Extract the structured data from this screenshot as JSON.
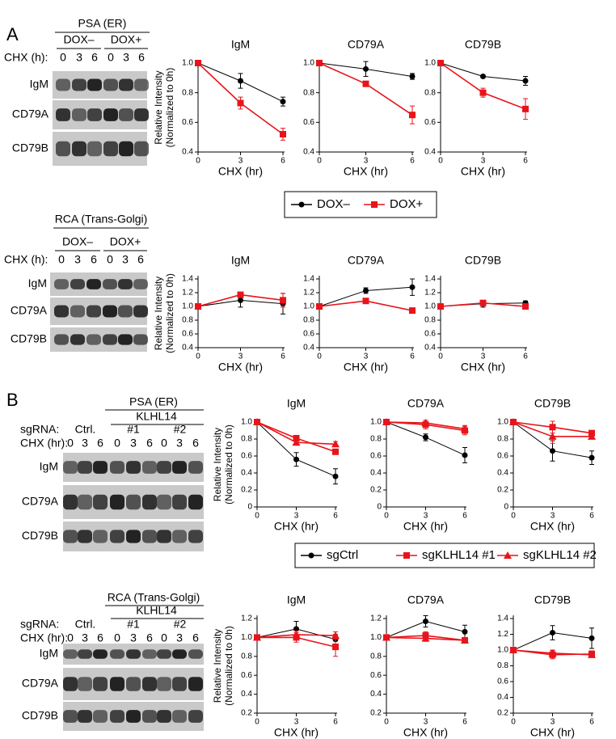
{
  "panels": [
    "A",
    "B"
  ],
  "blots": [
    {
      "title": "PSA (ER)",
      "groups": [
        "DOX–",
        "DOX+"
      ],
      "chx_label": "CHX (h):",
      "lanes": [
        "0",
        "3",
        "6",
        "0",
        "3",
        "6"
      ],
      "rows": [
        "IgM",
        "CD79A",
        "CD79B"
      ]
    },
    {
      "title": "RCA (Trans-Golgi)",
      "groups": [
        "DOX–",
        "DOX+"
      ],
      "chx_label": "CHX (h):",
      "lanes": [
        "0",
        "3",
        "6",
        "0",
        "3",
        "6"
      ],
      "rows": [
        "IgM",
        "CD79A",
        "CD79B"
      ]
    },
    {
      "title": "PSA (ER)",
      "super_group": "KLHL14",
      "group_label": "sgRNA:",
      "groups": [
        "Ctrl.",
        "#1",
        "#2"
      ],
      "chx_label": "CHX (hr):",
      "lanes": [
        "0",
        "3",
        "6",
        "0",
        "3",
        "6",
        "0",
        "3",
        "6"
      ],
      "rows": [
        "IgM",
        "CD79A",
        "CD79B"
      ]
    },
    {
      "title": "RCA (Trans-Golgi)",
      "super_group": "KLHL14",
      "group_label": "sgRNA:",
      "groups": [
        "Ctrl.",
        "#1",
        "#2"
      ],
      "chx_label": "CHX (hr):",
      "lanes": [
        "0",
        "3",
        "6",
        "0",
        "3",
        "6",
        "0",
        "3",
        "6"
      ],
      "rows": [
        "IgM",
        "CD79A",
        "CD79B"
      ]
    }
  ],
  "chart_data": [
    {
      "type": "line",
      "title": "IgM",
      "xlabel": "CHX (hr)",
      "ylabel": [
        "Relative Intensity",
        "(Normalized to 0h)"
      ],
      "x": [
        0,
        3,
        6
      ],
      "xlim": [
        0,
        6
      ],
      "xticks": [
        0,
        3,
        6
      ],
      "ylim": [
        0.4,
        1.0
      ],
      "yticks": [
        0.4,
        0.6,
        0.8,
        {
          "value": 1.0,
          "label": "1.0"
        }
      ],
      "series": [
        {
          "name": "DOX–",
          "color": "#000000",
          "marker": "circle",
          "values": [
            1.0,
            0.88,
            0.74
          ],
          "errors": [
            0,
            0.05,
            0.03
          ]
        },
        {
          "name": "DOX+",
          "color": "#e8141b",
          "marker": "square",
          "values": [
            1.0,
            0.73,
            0.52
          ],
          "errors": [
            0,
            0.04,
            0.04
          ]
        }
      ]
    },
    {
      "type": "line",
      "title": "CD79A",
      "xlabel": "CHX (hr)",
      "x": [
        0,
        3,
        6
      ],
      "xlim": [
        0,
        6
      ],
      "xticks": [
        0,
        3,
        6
      ],
      "ylim": [
        0.4,
        1.0
      ],
      "yticks": [
        0.4,
        0.6,
        0.8,
        {
          "value": 1.0,
          "label": "1.0"
        }
      ],
      "series": [
        {
          "name": "DOX–",
          "color": "#000000",
          "marker": "circle",
          "values": [
            1.0,
            0.96,
            0.91
          ],
          "errors": [
            0,
            0.05,
            0.02
          ]
        },
        {
          "name": "DOX+",
          "color": "#e8141b",
          "marker": "square",
          "values": [
            1.0,
            0.86,
            0.65
          ],
          "errors": [
            0,
            0.01,
            0.06
          ]
        }
      ]
    },
    {
      "type": "line",
      "title": "CD79B",
      "xlabel": "CHX (hr)",
      "x": [
        0,
        3,
        6
      ],
      "xlim": [
        0,
        6
      ],
      "xticks": [
        0,
        3,
        6
      ],
      "ylim": [
        0.4,
        1.0
      ],
      "yticks": [
        0.4,
        0.6,
        0.8,
        {
          "value": 1.0,
          "label": "1.0"
        }
      ],
      "series": [
        {
          "name": "DOX–",
          "color": "#000000",
          "marker": "circle",
          "values": [
            1.0,
            0.91,
            0.88
          ],
          "errors": [
            0,
            0.01,
            0.03
          ]
        },
        {
          "name": "DOX+",
          "color": "#e8141b",
          "marker": "square",
          "values": [
            1.0,
            0.8,
            0.69
          ],
          "errors": [
            0,
            0.03,
            0.07
          ]
        }
      ]
    },
    {
      "type": "line",
      "title": "IgM",
      "xlabel": "CHX (hr)",
      "ylabel": [
        "Relative Intensity",
        "(Normalized to 0h)"
      ],
      "x": [
        0,
        3,
        6
      ],
      "xlim": [
        0,
        6
      ],
      "xticks": [
        0,
        3,
        6
      ],
      "ylim": [
        0.4,
        1.4
      ],
      "yticks": [
        0.4,
        0.6,
        0.8,
        {
          "value": 1.0,
          "label": "1.0"
        },
        1.2,
        1.4
      ],
      "series": [
        {
          "name": "DOX–",
          "color": "#000000",
          "marker": "circle",
          "values": [
            1.0,
            1.09,
            1.04
          ],
          "errors": [
            0,
            0.1,
            0.15
          ]
        },
        {
          "name": "DOX+",
          "color": "#e8141b",
          "marker": "square",
          "values": [
            1.0,
            1.17,
            1.09
          ],
          "errors": [
            0,
            0.01,
            0.1
          ]
        }
      ]
    },
    {
      "type": "line",
      "title": "CD79A",
      "xlabel": "CHX (hr)",
      "x": [
        0,
        3,
        6
      ],
      "xlim": [
        0,
        6
      ],
      "xticks": [
        0,
        3,
        6
      ],
      "ylim": [
        0.4,
        1.4
      ],
      "yticks": [
        0.4,
        0.6,
        0.8,
        {
          "value": 1.0,
          "label": "1.0"
        },
        1.2,
        1.4
      ],
      "series": [
        {
          "name": "DOX–",
          "color": "#000000",
          "marker": "circle",
          "values": [
            1.0,
            1.23,
            1.28
          ],
          "errors": [
            0,
            0.04,
            0.12
          ]
        },
        {
          "name": "DOX+",
          "color": "#e8141b",
          "marker": "square",
          "values": [
            1.0,
            1.08,
            0.94
          ],
          "errors": [
            0,
            0.01,
            0.01
          ]
        }
      ]
    },
    {
      "type": "line",
      "title": "CD79B",
      "xlabel": "CHX (hr)",
      "x": [
        0,
        3,
        6
      ],
      "xlim": [
        0,
        6
      ],
      "xticks": [
        0,
        3,
        6
      ],
      "ylim": [
        0.4,
        1.4
      ],
      "yticks": [
        0.4,
        0.6,
        0.8,
        {
          "value": 1.0,
          "label": "1.0"
        },
        1.2,
        1.4
      ],
      "series": [
        {
          "name": "DOX–",
          "color": "#000000",
          "marker": "circle",
          "values": [
            1.0,
            1.04,
            1.05
          ],
          "errors": [
            0,
            0.05,
            0.03
          ]
        },
        {
          "name": "DOX+",
          "color": "#e8141b",
          "marker": "square",
          "values": [
            1.0,
            1.05,
            1.0
          ],
          "errors": [
            0,
            0.02,
            0.03
          ]
        }
      ]
    },
    {
      "type": "line",
      "title": "IgM",
      "xlabel": "CHX (hr)",
      "ylabel": [
        "Relative Intensity",
        "(Normalized to 0h)"
      ],
      "x": [
        0,
        3,
        6
      ],
      "xlim": [
        0,
        6
      ],
      "xticks": [
        0,
        3,
        6
      ],
      "ylim": [
        0,
        1.0
      ],
      "yticks": [
        0,
        0.2,
        0.4,
        0.6,
        0.8,
        {
          "value": 1.0,
          "label": "1.0"
        }
      ],
      "series": [
        {
          "name": "sgCtrl",
          "color": "#000000",
          "marker": "circle",
          "values": [
            1.0,
            0.56,
            0.36
          ],
          "errors": [
            0,
            0.08,
            0.09
          ]
        },
        {
          "name": "sgKLHL14 #1",
          "color": "#e8141b",
          "marker": "square",
          "values": [
            1.0,
            0.81,
            0.65
          ],
          "errors": [
            0,
            0.02,
            0.02
          ]
        },
        {
          "name": "sgKLHL14 #2",
          "color": "#e8141b",
          "marker": "triangle",
          "values": [
            1.0,
            0.76,
            0.74
          ],
          "errors": [
            0,
            0.03,
            0.03
          ]
        }
      ]
    },
    {
      "type": "line",
      "title": "CD79A",
      "xlabel": "CHX (hr)",
      "x": [
        0,
        3,
        6
      ],
      "xlim": [
        0,
        6
      ],
      "xticks": [
        0,
        3,
        6
      ],
      "ylim": [
        0,
        1.0
      ],
      "yticks": [
        0,
        0.2,
        0.4,
        0.6,
        0.8,
        {
          "value": 1.0,
          "label": "1.0"
        }
      ],
      "series": [
        {
          "name": "sgCtrl",
          "color": "#000000",
          "marker": "circle",
          "values": [
            1.0,
            0.82,
            0.61
          ],
          "errors": [
            0,
            0.04,
            0.09
          ]
        },
        {
          "name": "sgKLHL14 #1",
          "color": "#e8141b",
          "marker": "square",
          "values": [
            1.0,
            0.97,
            0.9
          ],
          "errors": [
            0,
            0.05,
            0.05
          ]
        },
        {
          "name": "sgKLHL14 #2",
          "color": "#e8141b",
          "marker": "triangle",
          "values": [
            1.0,
            0.99,
            0.92
          ],
          "errors": [
            0,
            0.03,
            0.04
          ]
        }
      ]
    },
    {
      "type": "line",
      "title": "CD79B",
      "xlabel": "CHX (hr)",
      "x": [
        0,
        3,
        6
      ],
      "xlim": [
        0,
        6
      ],
      "xticks": [
        0,
        3,
        6
      ],
      "ylim": [
        0,
        1.0
      ],
      "yticks": [
        0,
        0.2,
        0.4,
        0.6,
        0.8,
        {
          "value": 1.0,
          "label": "1.0"
        }
      ],
      "series": [
        {
          "name": "sgCtrl",
          "color": "#000000",
          "marker": "circle",
          "values": [
            1.0,
            0.66,
            0.58
          ],
          "errors": [
            0,
            0.12,
            0.08
          ]
        },
        {
          "name": "sgKLHL14 #1",
          "color": "#e8141b",
          "marker": "square",
          "values": [
            1.0,
            0.94,
            0.87
          ],
          "errors": [
            0,
            0.07,
            0.01
          ]
        },
        {
          "name": "sgKLHL14 #2",
          "color": "#e8141b",
          "marker": "triangle",
          "values": [
            1.0,
            0.83,
            0.83
          ],
          "errors": [
            0,
            0.08,
            0.02
          ]
        }
      ]
    },
    {
      "type": "line",
      "title": "IgM",
      "xlabel": "CHX (hr)",
      "ylabel": [
        "Relative Intensity",
        "(Normalized to 0h)"
      ],
      "x": [
        0,
        3,
        6
      ],
      "xlim": [
        0,
        6
      ],
      "xticks": [
        0,
        3,
        6
      ],
      "ylim": [
        0.2,
        1.2
      ],
      "yticks": [
        0.2,
        0.4,
        0.6,
        0.8,
        {
          "value": 1.0,
          "label": "1.0"
        },
        1.2
      ],
      "series": [
        {
          "name": "sgCtrl",
          "color": "#000000",
          "marker": "circle",
          "values": [
            1.0,
            1.09,
            0.98
          ],
          "errors": [
            0,
            0.08,
            0.05
          ]
        },
        {
          "name": "sgKLHL14 #1",
          "color": "#e8141b",
          "marker": "square",
          "values": [
            1.0,
            1.0,
            0.9
          ],
          "errors": [
            0,
            0.05,
            0.1
          ]
        },
        {
          "name": "sgKLHL14 #2",
          "color": "#e8141b",
          "marker": "triangle",
          "values": [
            1.0,
            1.03,
            1.02
          ],
          "errors": [
            0,
            0.04,
            0.04
          ]
        }
      ]
    },
    {
      "type": "line",
      "title": "CD79A",
      "xlabel": "CHX (hr)",
      "x": [
        0,
        3,
        6
      ],
      "xlim": [
        0,
        6
      ],
      "xticks": [
        0,
        3,
        6
      ],
      "ylim": [
        0.2,
        1.2
      ],
      "yticks": [
        0.2,
        0.4,
        0.6,
        0.8,
        {
          "value": 1.0,
          "label": "1.0"
        },
        1.2
      ],
      "series": [
        {
          "name": "sgCtrl",
          "color": "#000000",
          "marker": "circle",
          "values": [
            1.0,
            1.17,
            1.06
          ],
          "errors": [
            0,
            0.06,
            0.07
          ]
        },
        {
          "name": "sgKLHL14 #1",
          "color": "#e8141b",
          "marker": "square",
          "values": [
            1.0,
            1.02,
            0.97
          ],
          "errors": [
            0,
            0.04,
            0.02
          ]
        },
        {
          "name": "sgKLHL14 #2",
          "color": "#e8141b",
          "marker": "triangle",
          "values": [
            1.0,
            0.99,
            0.97
          ],
          "errors": [
            0,
            0.03,
            0.02
          ]
        }
      ]
    },
    {
      "type": "line",
      "title": "CD79B",
      "xlabel": "CHX (hr)",
      "x": [
        0,
        3,
        6
      ],
      "xlim": [
        0,
        6
      ],
      "xticks": [
        0,
        3,
        6
      ],
      "ylim": [
        0.2,
        1.4
      ],
      "yticks": [
        0.2,
        0.4,
        0.6,
        0.8,
        {
          "value": 1.0,
          "label": "1.0"
        },
        1.2,
        1.4
      ],
      "series": [
        {
          "name": "sgCtrl",
          "color": "#000000",
          "marker": "circle",
          "values": [
            1.0,
            1.22,
            1.15
          ],
          "errors": [
            0,
            0.09,
            0.13
          ]
        },
        {
          "name": "sgKLHL14 #1",
          "color": "#e8141b",
          "marker": "square",
          "values": [
            1.0,
            0.94,
            0.95
          ],
          "errors": [
            0,
            0.05,
            0.04
          ]
        },
        {
          "name": "sgKLHL14 #2",
          "color": "#e8141b",
          "marker": "triangle",
          "values": [
            1.0,
            0.96,
            0.94
          ],
          "errors": [
            0,
            0.04,
            0.03
          ]
        }
      ]
    }
  ]
}
